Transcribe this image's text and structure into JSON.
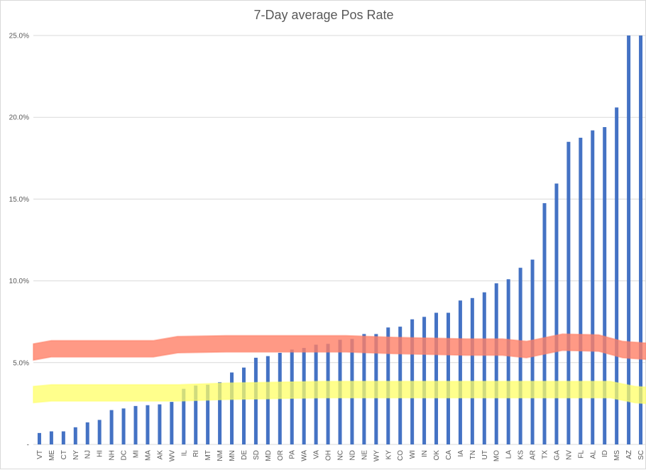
{
  "chart_data": {
    "type": "bar",
    "title": "7-Day average Pos Rate",
    "xlabel": "",
    "ylabel": "",
    "ylim": [
      0,
      25
    ],
    "yticks": [
      0,
      5,
      10,
      15,
      20,
      25
    ],
    "ytick_labels": [
      "-",
      "5.0%",
      "10.0%",
      "15.0%",
      "20.0%",
      "25.0%"
    ],
    "grid": true,
    "bar_color": "#4472c4",
    "categories": [
      "VT",
      "ME",
      "CT",
      "NY",
      "NJ",
      "HI",
      "NH",
      "DC",
      "MI",
      "MA",
      "AK",
      "WV",
      "IL",
      "RI",
      "MT",
      "NM",
      "MN",
      "DE",
      "SD",
      "MD",
      "OR",
      "PA",
      "WA",
      "VA",
      "OH",
      "NC",
      "ND",
      "NE",
      "WY",
      "KY",
      "CO",
      "WI",
      "IN",
      "OK",
      "CA",
      "IA",
      "TN",
      "UT",
      "MO",
      "LA",
      "KS",
      "AR",
      "TX",
      "GA",
      "NV",
      "FL",
      "AL",
      "ID",
      "MS",
      "AZ",
      "SC"
    ],
    "values": [
      0.7,
      0.8,
      0.8,
      1.05,
      1.35,
      1.5,
      2.1,
      2.2,
      2.35,
      2.4,
      2.45,
      2.6,
      3.4,
      3.6,
      3.65,
      3.8,
      4.4,
      4.7,
      5.3,
      5.4,
      5.6,
      5.8,
      5.9,
      6.1,
      6.15,
      6.4,
      6.45,
      6.75,
      6.75,
      7.15,
      7.2,
      7.65,
      7.8,
      8.05,
      8.05,
      8.8,
      8.95,
      9.3,
      9.85,
      10.1,
      10.8,
      11.3,
      14.75,
      15.95,
      18.5,
      18.75,
      19.2,
      19.4,
      20.6,
      25.0,
      25.0
    ],
    "bands": [
      {
        "color": "#ff7f66",
        "opacity": 0.8,
        "thickness_pct": 1.0,
        "points": [
          [
            0,
            5.65
          ],
          [
            1.5,
            5.85
          ],
          [
            10,
            5.85
          ],
          [
            12,
            6.1
          ],
          [
            16,
            6.15
          ],
          [
            26,
            6.15
          ],
          [
            30,
            6.05
          ],
          [
            36,
            5.95
          ],
          [
            39,
            5.95
          ],
          [
            41,
            5.8
          ],
          [
            44,
            6.25
          ],
          [
            47,
            6.2
          ],
          [
            49,
            5.8
          ],
          [
            51,
            5.7
          ]
        ]
      },
      {
        "color": "#ffff66",
        "opacity": 0.75,
        "thickness_pct": 1.0,
        "points": [
          [
            0,
            3.05
          ],
          [
            1.5,
            3.15
          ],
          [
            12,
            3.15
          ],
          [
            16,
            3.25
          ],
          [
            24,
            3.35
          ],
          [
            48,
            3.35
          ],
          [
            50,
            3.05
          ],
          [
            51,
            3.0
          ]
        ]
      }
    ]
  }
}
